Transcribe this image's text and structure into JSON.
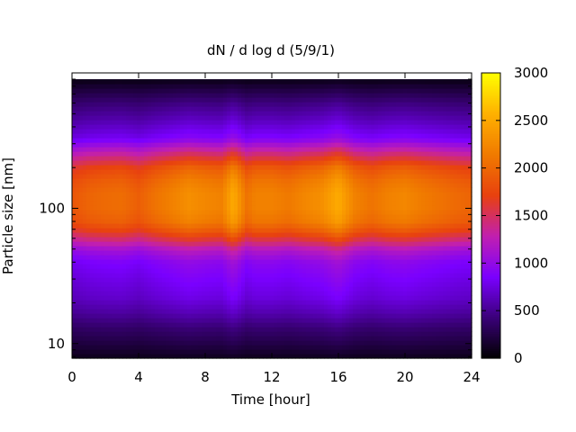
{
  "chart_data": {
    "type": "heatmap",
    "title": "dN / d log d (5/9/1)",
    "xlabel": "Time [hour]",
    "ylabel": "Particle size [nm]",
    "xlim": [
      0,
      24
    ],
    "ylim": [
      7.8,
      900
    ],
    "y_scale": "log",
    "x_ticks": [
      0,
      4,
      8,
      12,
      16,
      20,
      24
    ],
    "x_tick_labels": [
      "0",
      "4",
      "8",
      "12",
      "16",
      "20",
      "24"
    ],
    "y_ticks": [
      10,
      100
    ],
    "y_tick_labels": [
      "10",
      "100"
    ],
    "colorbar": {
      "range": [
        0,
        3000
      ],
      "ticks": [
        0,
        500,
        1000,
        1500,
        2000,
        2500,
        3000
      ],
      "tick_labels": [
        "0",
        "500",
        "1000",
        "1500",
        "2000",
        "2500",
        "3000"
      ],
      "colormap": [
        "#000000",
        "#3a0078",
        "#7a00ff",
        "#c11fb0",
        "#e8410f",
        "#f07a00",
        "#ffb000",
        "#ffff00"
      ]
    },
    "profile": {
      "size_nm": [
        7.8,
        10,
        13,
        17,
        22,
        30,
        40,
        50,
        60,
        70,
        80,
        100,
        130,
        160,
        200,
        260,
        330,
        450,
        600,
        750,
        900
      ],
      "dndlogd": [
        100,
        250,
        400,
        600,
        750,
        850,
        950,
        1200,
        1600,
        1900,
        2100,
        2200,
        2200,
        2100,
        1900,
        1400,
        900,
        650,
        450,
        250,
        80
      ]
    },
    "time_hour": [
      0,
      1,
      2,
      3,
      4,
      5,
      6,
      7,
      8,
      9,
      9.7,
      10.5,
      11,
      12,
      13,
      14,
      15,
      16,
      17,
      18,
      19,
      20,
      21,
      22,
      23,
      24
    ],
    "intensity_factor": [
      0.85,
      0.9,
      0.92,
      0.93,
      0.88,
      0.95,
      1.0,
      1.05,
      1.02,
      1.0,
      1.15,
      0.95,
      1.0,
      1.0,
      0.97,
      1.02,
      1.05,
      1.15,
      1.0,
      0.95,
      1.0,
      1.02,
      0.98,
      0.95,
      0.92,
      0.9
    ]
  }
}
